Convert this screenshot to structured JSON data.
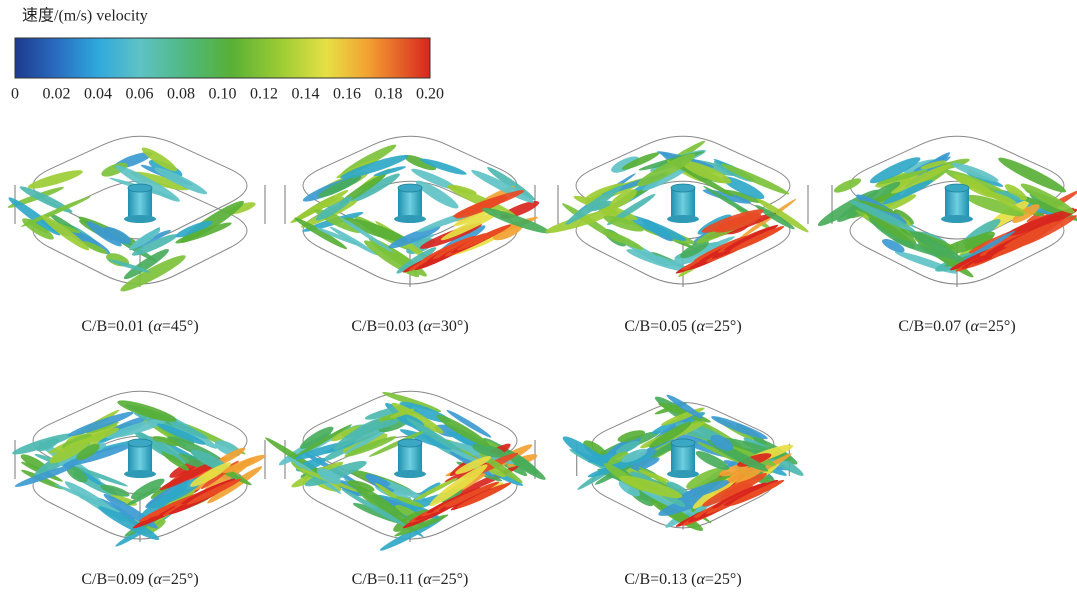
{
  "colorbar": {
    "title": "速度/(m/s) velocity",
    "ticks": [
      "0",
      "0.02",
      "0.04",
      "0.06",
      "0.08",
      "0.10",
      "0.12",
      "0.14",
      "0.16",
      "0.18",
      "0.20"
    ]
  },
  "panels": [
    {
      "caption": {
        "ratio": "C/B=0.01 (",
        "symbol": "α",
        "angle": "=45°)"
      }
    },
    {
      "caption": {
        "ratio": "C/B=0.03 (",
        "symbol": "α",
        "angle": "=30°)"
      }
    },
    {
      "caption": {
        "ratio": "C/B=0.05 (",
        "symbol": "α",
        "angle": "=25°)"
      }
    },
    {
      "caption": {
        "ratio": "C/B=0.07 (",
        "symbol": "α",
        "angle": "=25°)"
      }
    },
    {
      "caption": {
        "ratio": "C/B=0.09 (",
        "symbol": "α",
        "angle": "=25°)"
      }
    },
    {
      "caption": {
        "ratio": "C/B=0.11 (",
        "symbol": "α",
        "angle": "=25°)"
      }
    },
    {
      "caption": {
        "ratio": "C/B=0.13 (",
        "symbol": "α",
        "angle": "=25°)"
      }
    }
  ]
}
